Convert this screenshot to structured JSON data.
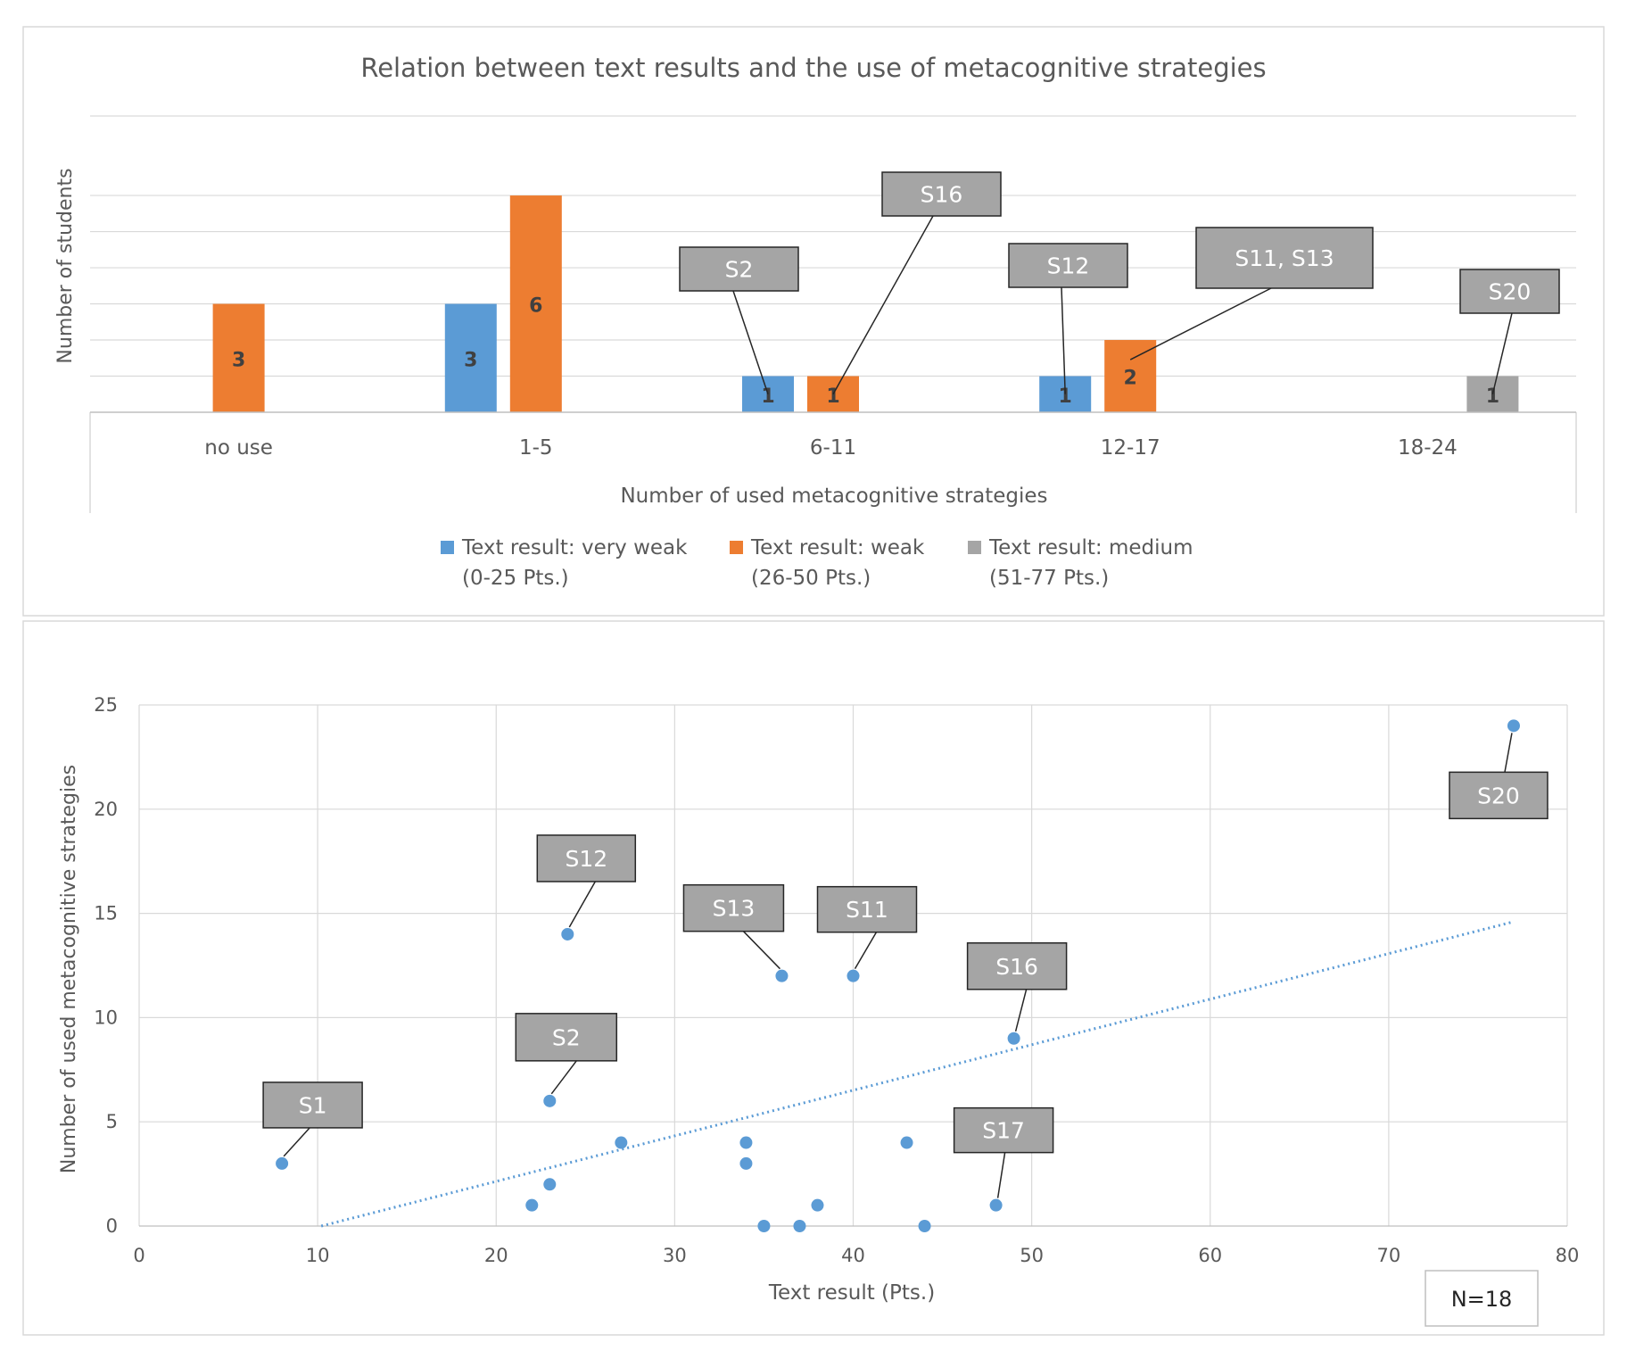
{
  "chart_data": [
    {
      "type": "bar",
      "title": "Relation between text results and the use of metacognitive strategies",
      "xlabel": "Number of used metacognitive strategies",
      "ylabel": "Number of students",
      "ylim": [
        0,
        6
      ],
      "grid": true,
      "legend_position": "bottom",
      "categories": [
        "no use",
        "1-5",
        "6-11",
        "12-17",
        "18-24"
      ],
      "series": [
        {
          "name": "Text result: very weak",
          "range": "(0-25 Pts.)",
          "color": "#5b9bd5",
          "values": [
            0,
            3,
            1,
            1,
            0
          ]
        },
        {
          "name": "Text result: weak",
          "range": "(26-50 Pts.)",
          "color": "#ed7d31",
          "values": [
            3,
            6,
            1,
            2,
            0
          ]
        },
        {
          "name": "Text result: medium",
          "range": "(51-77 Pts.)",
          "color": "#a5a5a5",
          "values": [
            0,
            0,
            0,
            0,
            1
          ]
        }
      ],
      "annotations": [
        {
          "text": "S2",
          "category": "6-11",
          "series": 0
        },
        {
          "text": "S16",
          "category": "6-11",
          "series": 1
        },
        {
          "text": "S12",
          "category": "12-17",
          "series": 0
        },
        {
          "text": "S11, S13",
          "category": "12-17",
          "series": 1
        },
        {
          "text": "S20",
          "category": "18-24",
          "series": 2
        }
      ]
    },
    {
      "type": "scatter",
      "title": "",
      "xlabel": "Text result (Pts.)",
      "ylabel": "Number of used metacognitive strategies",
      "xlim": [
        0,
        80
      ],
      "ylim": [
        0,
        25
      ],
      "xticks": [
        0,
        10,
        20,
        30,
        40,
        50,
        60,
        70,
        80
      ],
      "yticks": [
        0,
        5,
        10,
        15,
        20,
        25
      ],
      "grid": true,
      "color": "#5b9bd5",
      "points": [
        {
          "x": 8,
          "y": 3,
          "label": "S1"
        },
        {
          "x": 22,
          "y": 1,
          "label": ""
        },
        {
          "x": 23,
          "y": 2,
          "label": ""
        },
        {
          "x": 23,
          "y": 6,
          "label": "S2"
        },
        {
          "x": 24,
          "y": 14,
          "label": "S12"
        },
        {
          "x": 27,
          "y": 4,
          "label": ""
        },
        {
          "x": 34,
          "y": 4,
          "label": ""
        },
        {
          "x": 34,
          "y": 3,
          "label": ""
        },
        {
          "x": 35,
          "y": 0,
          "label": ""
        },
        {
          "x": 36,
          "y": 12,
          "label": "S13"
        },
        {
          "x": 37,
          "y": 0,
          "label": ""
        },
        {
          "x": 38,
          "y": 1,
          "label": ""
        },
        {
          "x": 40,
          "y": 12,
          "label": "S11"
        },
        {
          "x": 43,
          "y": 4,
          "label": ""
        },
        {
          "x": 44,
          "y": 0,
          "label": ""
        },
        {
          "x": 48,
          "y": 1,
          "label": "S17"
        },
        {
          "x": 49,
          "y": 9,
          "label": "S16"
        },
        {
          "x": 77,
          "y": 24,
          "label": "S20"
        }
      ],
      "trendline": {
        "type": "linear",
        "style": "dotted",
        "x_start": 10.2,
        "y_start": 0,
        "x_end": 77,
        "y_end": 14.6
      },
      "annotation_box": "N=18"
    }
  ]
}
